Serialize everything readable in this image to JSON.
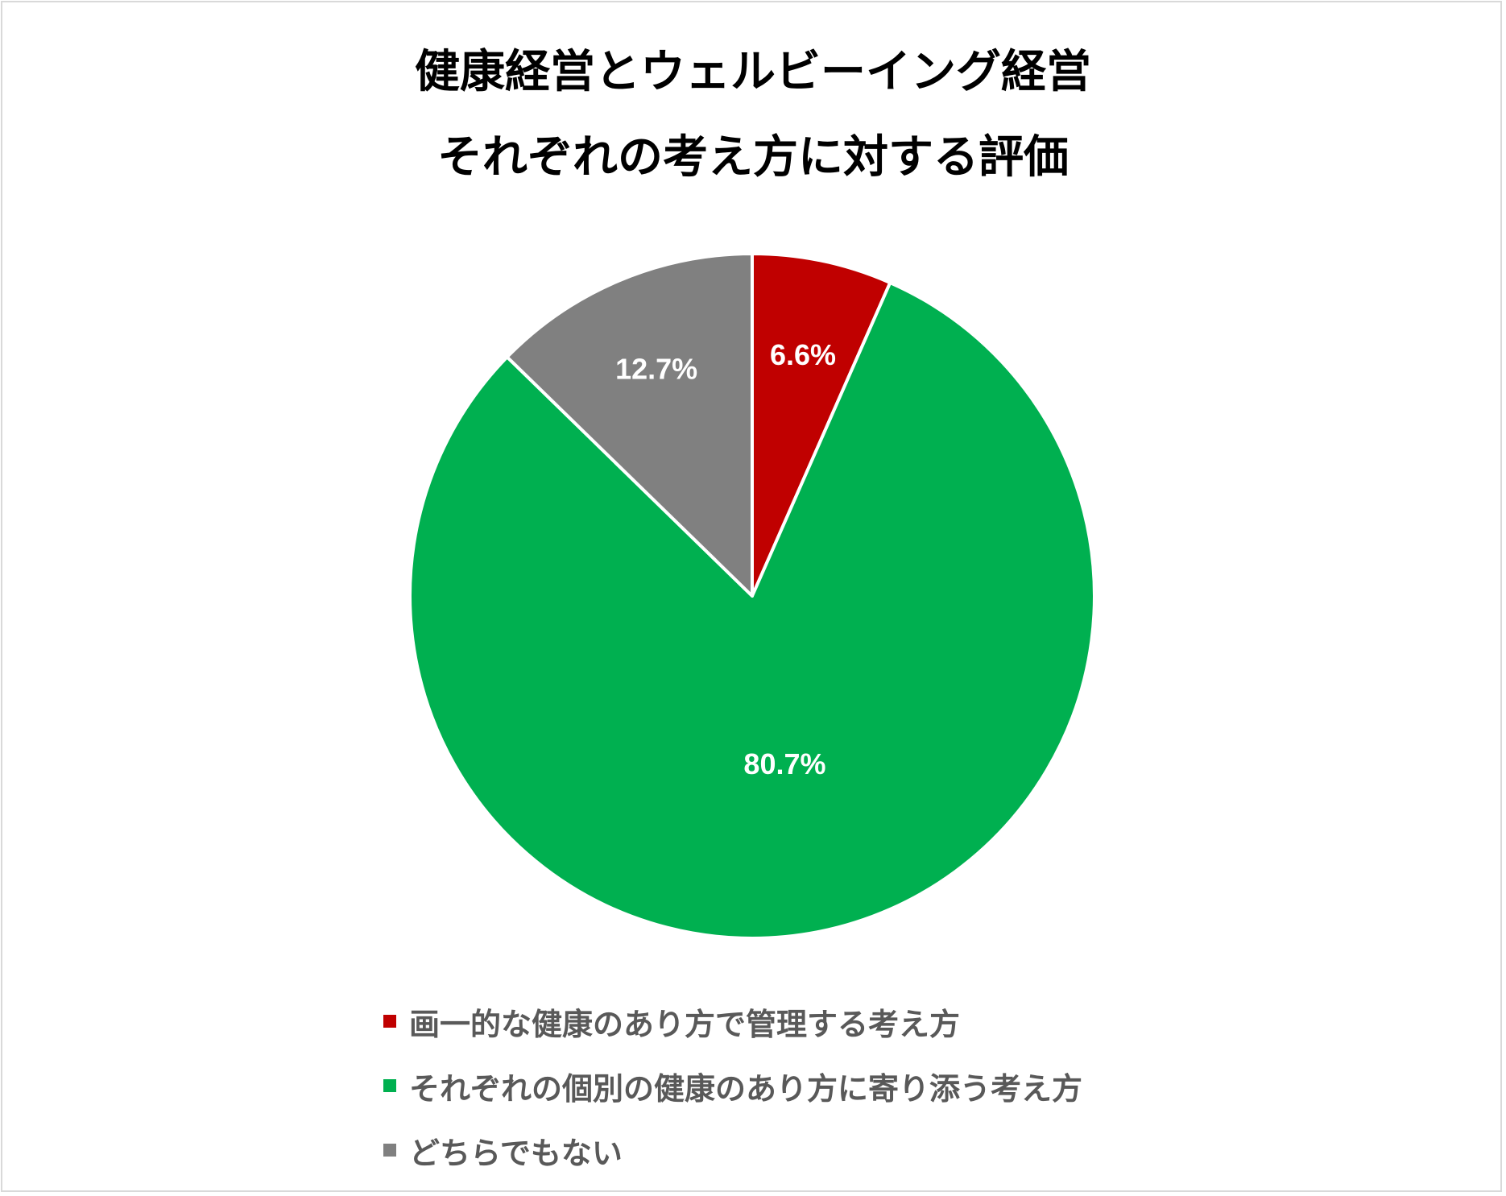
{
  "chart_data": {
    "type": "pie",
    "title_lines": [
      "健康経営とウェルビーイング経営",
      "それぞれの考え方に対する評価"
    ],
    "slices": [
      {
        "label": "画一的な健康のあり方で管理する考え方",
        "value": 6.6,
        "display": "6.6%",
        "color": "#C00000"
      },
      {
        "label": "それぞれの個別の健康のあり方に寄り添う考え方",
        "value": 80.7,
        "display": "80.7%",
        "color": "#00B050"
      },
      {
        "label": "どちらでもない",
        "value": 12.7,
        "display": "12.7%",
        "color": "#808080"
      }
    ],
    "start_angle": "12 o'clock",
    "direction": "clockwise",
    "legend_position": "bottom"
  }
}
